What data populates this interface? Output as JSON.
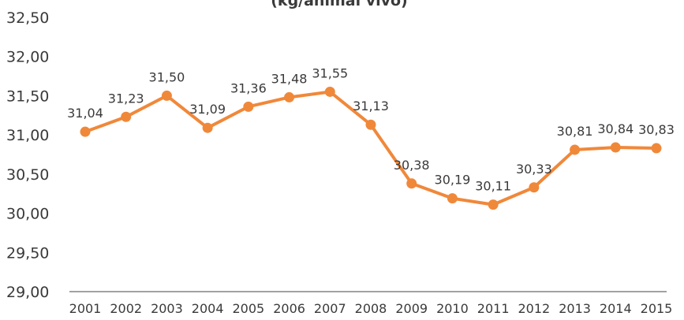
{
  "chart_data": {
    "type": "line",
    "title": "(kg/animal vivo)",
    "categories": [
      "2001",
      "2002",
      "2003",
      "2004",
      "2005",
      "2006",
      "2007",
      "2008",
      "2009",
      "2010",
      "2011",
      "2012",
      "2013",
      "2014",
      "2015"
    ],
    "series": [
      {
        "name": "kg/animal vivo",
        "color": "#f0883a",
        "values": [
          31.04,
          31.23,
          31.5,
          31.09,
          31.36,
          31.48,
          31.55,
          31.13,
          30.38,
          30.19,
          30.11,
          30.33,
          30.81,
          30.84,
          30.83
        ],
        "value_labels": [
          "31,04",
          "31,23",
          "31,50",
          "31,09",
          "31,36",
          "31,48",
          "31,55",
          "31,13",
          "30,38",
          "30,19",
          "30,11",
          "30,33",
          "30,81",
          "30,84",
          "30,83"
        ]
      }
    ],
    "ylim": [
      29,
      32.5
    ],
    "yticks": [
      {
        "value": 29,
        "label": "29,00"
      },
      {
        "value": 29.5,
        "label": "29,50"
      },
      {
        "value": 30,
        "label": "30,00"
      },
      {
        "value": 30.5,
        "label": "30,50"
      },
      {
        "value": 31,
        "label": "31,00"
      },
      {
        "value": 31.5,
        "label": "31,50"
      },
      {
        "value": 32,
        "label": "32,00"
      },
      {
        "value": 32.5,
        "label": "32,50"
      }
    ],
    "grid": false
  }
}
